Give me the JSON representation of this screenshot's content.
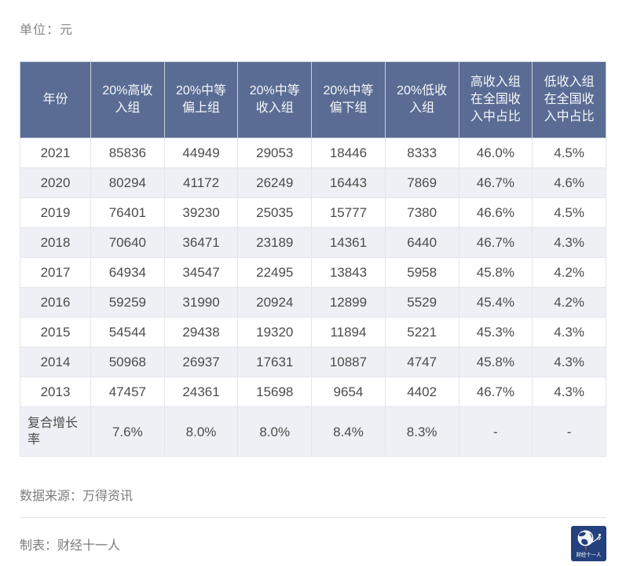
{
  "chart_data": {
    "type": "table",
    "unit_label": "单位：元",
    "columns": [
      "年份",
      "20%高收入组",
      "20%中等偏上组",
      "20%中等收入组",
      "20%中等偏下组",
      "20%低收入组",
      "高收入组在全国收入中占比",
      "低收入组在全国收入中占比"
    ],
    "rows": [
      [
        "2021",
        "85836",
        "44949",
        "29053",
        "18446",
        "8333",
        "46.0%",
        "4.5%"
      ],
      [
        "2020",
        "80294",
        "41172",
        "26249",
        "16443",
        "7869",
        "46.7%",
        "4.6%"
      ],
      [
        "2019",
        "76401",
        "39230",
        "25035",
        "15777",
        "7380",
        "46.6%",
        "4.5%"
      ],
      [
        "2018",
        "70640",
        "36471",
        "23189",
        "14361",
        "6440",
        "46.7%",
        "4.3%"
      ],
      [
        "2017",
        "64934",
        "34547",
        "22495",
        "13843",
        "5958",
        "45.8%",
        "4.2%"
      ],
      [
        "2016",
        "59259",
        "31990",
        "20924",
        "12899",
        "5529",
        "45.4%",
        "4.2%"
      ],
      [
        "2015",
        "54544",
        "29438",
        "19320",
        "11894",
        "5221",
        "45.3%",
        "4.3%"
      ],
      [
        "2014",
        "50968",
        "26937",
        "17631",
        "10887",
        "4747",
        "45.8%",
        "4.3%"
      ],
      [
        "2013",
        "47457",
        "24361",
        "15698",
        "9654",
        "4402",
        "46.7%",
        "4.3%"
      ],
      [
        "复合增长率",
        "7.6%",
        "8.0%",
        "8.0%",
        "8.4%",
        "8.3%",
        "-",
        "-"
      ]
    ],
    "layout": {
      "alternating_rows": true,
      "header_multiline": true
    }
  },
  "footer": {
    "source": "数据来源：万得资讯",
    "maker": "制表：财经十一人",
    "logo_text": "财经十一人"
  },
  "colors": {
    "header_bg": "#5A6C94",
    "header_text": "#F6F7FA",
    "row_alt_bg": "#EEF0F5",
    "body_text": "#4C4C4C",
    "border": "#E3E5EA",
    "footer_text": "#7B7B7B",
    "logo_bg": "#24417D",
    "logo_accent_red": "#C0392B"
  }
}
